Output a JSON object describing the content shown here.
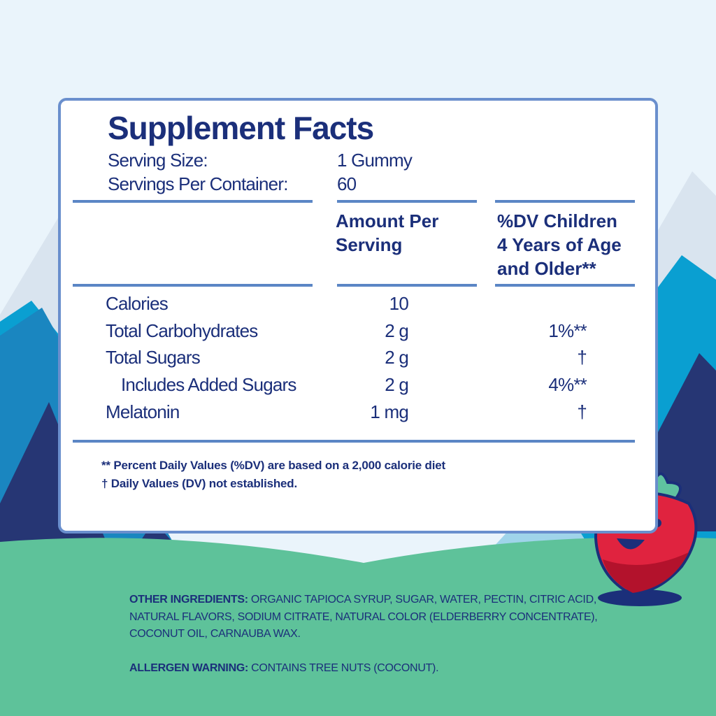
{
  "panel": {
    "title": "Supplement Facts",
    "serving_size": {
      "label": "Serving Size:",
      "value": "1 Gummy"
    },
    "servings_per_container": {
      "label": "Servings Per Container:",
      "value": "60"
    },
    "header": {
      "amount": [
        "Amount Per",
        "Serving"
      ],
      "dv": [
        "%DV Children",
        "4 Years of Age",
        "and Older**"
      ]
    },
    "rows": [
      {
        "name": "Calories",
        "amount": "10",
        "dv": null
      },
      {
        "name": "Total Carbohydrates",
        "amount": "2 g",
        "dv": "1%**"
      },
      {
        "name": "Total Sugars",
        "amount": "2 g",
        "dv": "†"
      },
      {
        "name": "Includes Added Sugars",
        "amount": "2 g",
        "dv": "4%**"
      },
      {
        "name": "Melatonin",
        "amount": "1 mg",
        "dv": "†"
      }
    ],
    "footnotes": [
      "** Percent Daily Values (%DV) are based on a 2,000 calorie diet",
      "† Daily Values (DV) not established."
    ]
  },
  "other_ingredients": {
    "label": "OTHER INGREDIENTS:",
    "text": "ORGANIC TAPIOCA SYRUP, SUGAR, WATER, PECTIN, CITRIC ACID, NATURAL FLAVORS, SODIUM CITRATE, NATURAL COLOR (ELDERBERRY CONCENTRATE), COCONUT OIL, CARNAUBA WAX."
  },
  "allergen_warning": {
    "label": "ALLERGEN WARNING:",
    "text": "CONTAINS TREE NUTS (COCONUT)."
  }
}
